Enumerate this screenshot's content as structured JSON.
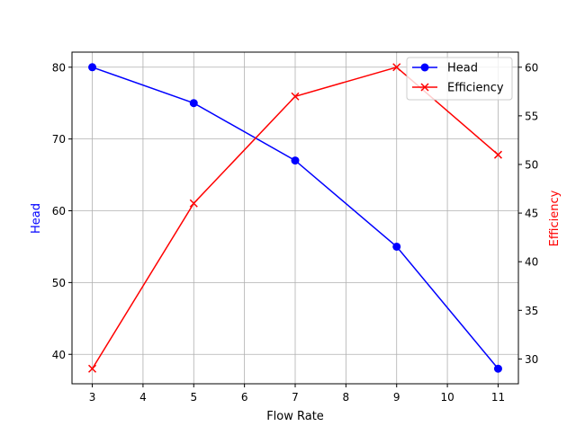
{
  "chart_data": {
    "type": "line",
    "title": "",
    "xlabel": "Flow Rate",
    "ylabel": "Head",
    "y2label": "Efficiency",
    "x": [
      3,
      5,
      7,
      9,
      11
    ],
    "xticks": [
      3,
      4,
      5,
      6,
      7,
      8,
      9,
      10,
      11
    ],
    "yticks": [
      40,
      50,
      60,
      70,
      80
    ],
    "y2ticks": [
      30,
      35,
      40,
      45,
      50,
      55,
      60
    ],
    "xlim": [
      2.6,
      11.4
    ],
    "ylim": [
      35.9,
      82.1
    ],
    "y2lim": [
      27.45,
      61.55
    ],
    "grid": true,
    "legend_position": "upper right",
    "series": [
      {
        "name": "Head",
        "axis": "left",
        "color": "#0000ff",
        "marker": "o",
        "values": [
          80,
          75,
          67,
          55,
          38
        ]
      },
      {
        "name": "Efficiency",
        "axis": "right",
        "color": "#ff0000",
        "marker": "x",
        "values": [
          29,
          46,
          57,
          60,
          51
        ]
      }
    ]
  }
}
